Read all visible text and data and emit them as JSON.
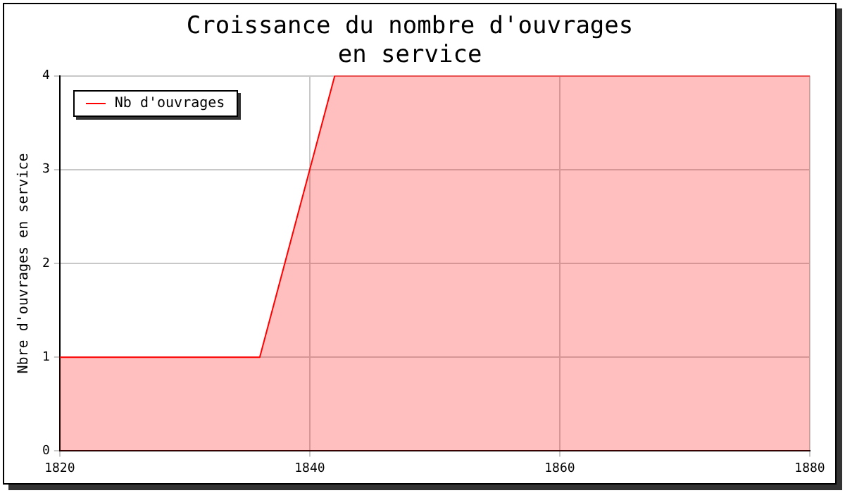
{
  "chart_data": {
    "type": "area",
    "title": "Croissance du nombre d'ouvrages\nen service",
    "ylabel": "Nbre d'ouvrages en service",
    "x": [
      1820,
      1836,
      1842,
      1880
    ],
    "series": [
      {
        "name": "Nb d'ouvrages",
        "color": "#ff0000",
        "values": [
          1,
          1,
          4,
          4
        ]
      }
    ],
    "xlim": [
      1820,
      1880
    ],
    "xticks": [
      1820,
      1840,
      1860,
      1880
    ],
    "ylim": [
      0,
      4
    ],
    "yticks": [
      0,
      1,
      2,
      3,
      4
    ],
    "grid": true,
    "legend": "top left"
  }
}
